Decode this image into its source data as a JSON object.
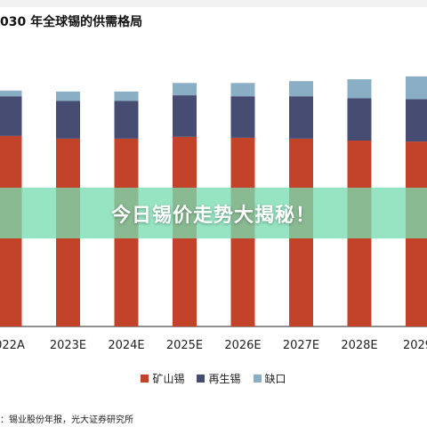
{
  "title": "030 年全球锡的供需格局",
  "banner": {
    "text": "今日锡价走势大揭秘！"
  },
  "source": "：锡业股份年报，光大证券研究所",
  "colors": {
    "mine": "#c3432a",
    "recycled": "#464c72",
    "gap": "#8aaec4",
    "banner": "#78dcaf"
  },
  "chart_data": {
    "type": "bar",
    "stacked": true,
    "title": "030 年全球锡的供需格局",
    "categories": [
      "022A",
      "2023E",
      "2024E",
      "2025E",
      "2026E",
      "2027E",
      "2028E",
      "2029"
    ],
    "series": [
      {
        "name": "矿山锡",
        "values": [
          20.2,
          19.9,
          19.9,
          20.1,
          20.0,
          19.9,
          19.7,
          19.6
        ]
      },
      {
        "name": "再生锡",
        "values": [
          4.2,
          4.0,
          4.0,
          4.4,
          4.4,
          4.5,
          4.5,
          4.5
        ]
      },
      {
        "name": "缺口",
        "values": [
          0.6,
          1.0,
          1.0,
          1.3,
          1.4,
          1.6,
          2.0,
          2.4
        ]
      }
    ],
    "ylim": [
      0,
      28
    ],
    "grid": false,
    "legend": "bottom"
  }
}
